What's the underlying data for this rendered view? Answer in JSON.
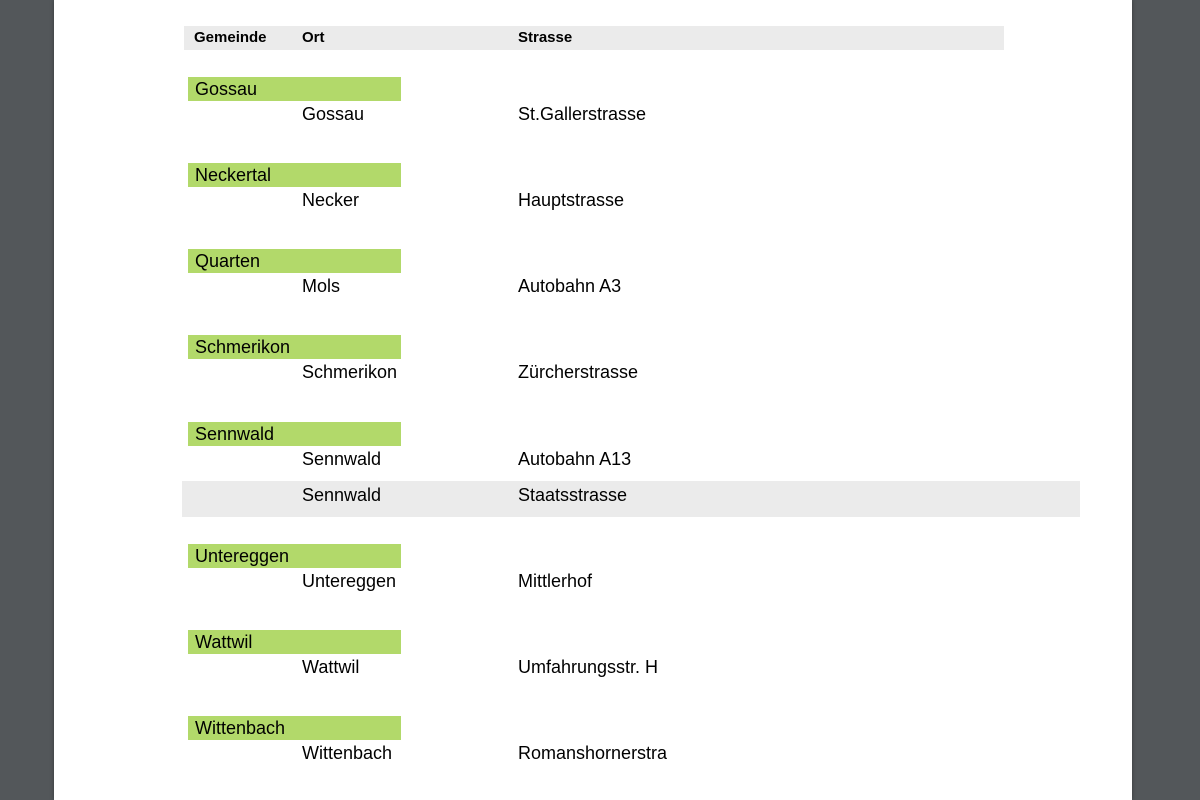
{
  "header": {
    "gemeinde": "Gemeinde",
    "ort": "Ort",
    "strasse": "Strasse"
  },
  "groups": [
    {
      "gemeinde": "Gossau",
      "rows": [
        {
          "ort": "Gossau",
          "strasse": "St.Gallerstrasse"
        }
      ]
    },
    {
      "gemeinde": "Neckertal",
      "rows": [
        {
          "ort": "Necker",
          "strasse": "Hauptstrasse"
        }
      ]
    },
    {
      "gemeinde": "Quarten",
      "rows": [
        {
          "ort": "Mols",
          "strasse": "Autobahn A3"
        }
      ]
    },
    {
      "gemeinde": "Schmerikon",
      "rows": [
        {
          "ort": "Schmerikon",
          "strasse": "Zürcherstrasse"
        }
      ]
    },
    {
      "gemeinde": "Sennwald",
      "rows": [
        {
          "ort": "Sennwald",
          "strasse": "Autobahn A13"
        },
        {
          "ort": "Sennwald",
          "strasse": "Staatsstrasse"
        }
      ]
    },
    {
      "gemeinde": "Untereggen",
      "rows": [
        {
          "ort": "Untereggen",
          "strasse": "Mittlerhof"
        }
      ]
    },
    {
      "gemeinde": "Wattwil",
      "rows": [
        {
          "ort": "Wattwil",
          "strasse": "Umfahrungsstr. H"
        }
      ]
    },
    {
      "gemeinde": "Wittenbach",
      "rows": [
        {
          "ort": "Wittenbach",
          "strasse": "Romanshornerstra"
        }
      ]
    }
  ],
  "colors": {
    "gemeinde_highlight": "#b2d96a",
    "header_bg": "#ebebeb",
    "alt_row_bg": "#ebebeb",
    "viewer_bg": "#53575a"
  }
}
